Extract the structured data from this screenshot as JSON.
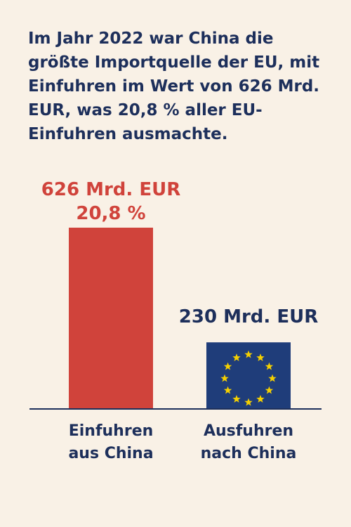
{
  "headline": {
    "line1": "Im Jahr 2022 war China die",
    "line2": "größte Importquelle der EU, mit",
    "line3": "Einfuhren im Wert von 626 Mrd.",
    "line4": "EUR, was 20,8 % aller EU-",
    "line5": "Einfuhren ausmachte."
  },
  "chart_data": {
    "type": "bar",
    "title": "",
    "xlabel": "",
    "ylabel": "",
    "unit": "Mrd. EUR",
    "categories": [
      {
        "line1": "Einfuhren",
        "line2": "aus China"
      },
      {
        "line1": "Ausfuhren",
        "line2": "nach China"
      }
    ],
    "values": [
      626,
      230
    ],
    "value_labels": [
      {
        "line1": "626 Mrd. EUR",
        "line2": "20,8 %"
      },
      {
        "line1": "230 Mrd. EUR",
        "line2": ""
      }
    ],
    "colors": [
      "#d0433b",
      "#1f3d7a"
    ],
    "label_colors": [
      "#d0433b",
      "#1d2f5b"
    ],
    "star_color": "#f5d000",
    "axis_color": "#1d2f5b",
    "ylim": [
      0,
      626
    ],
    "grid": false,
    "legend": "none",
    "bar_icons": [
      "",
      "eu-flag-stars"
    ]
  }
}
